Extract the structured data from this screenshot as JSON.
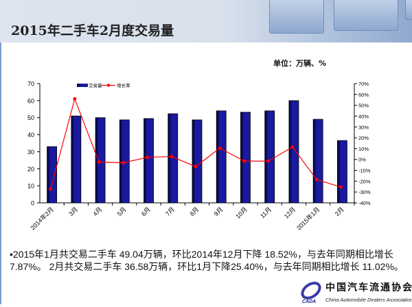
{
  "header": {
    "title": "2015年二手车2月度交易量"
  },
  "unit_label": "单位：万辆、%",
  "chart_data": {
    "type": "bar+line",
    "categories": [
      "2014年2月",
      "3月",
      "4月",
      "5月",
      "6月",
      "7月",
      "8月",
      "9月",
      "10月",
      "11月",
      "12月",
      "2015年1月",
      "2月"
    ],
    "series": [
      {
        "name": "交易量",
        "type": "bar",
        "axis": "left",
        "color": "#1a1a9c",
        "values": [
          33,
          51,
          50,
          48.7,
          49.5,
          52.3,
          48.7,
          54,
          53.2,
          54,
          60,
          49.04,
          36.58
        ]
      },
      {
        "name": "增长率",
        "type": "line",
        "axis": "right",
        "color": "#ff0000",
        "values": [
          -27.4,
          55.9,
          -2.3,
          -3.1,
          2,
          2.7,
          -6.5,
          10.5,
          -1.5,
          -1.5,
          11.5,
          -18.52,
          -25.4
        ]
      }
    ],
    "left_axis": {
      "ylim": [
        0,
        70
      ],
      "ticks": [
        "0",
        "10",
        "20",
        "30",
        "40",
        "50",
        "60",
        "70"
      ]
    },
    "right_axis": {
      "ylim": [
        -40,
        70
      ],
      "ticks": [
        "-40%",
        "-30%",
        "-20%",
        "-10%",
        "0%",
        "10%",
        "20%",
        "30%",
        "40%",
        "50%",
        "60%",
        "70%"
      ]
    },
    "legend": "top-left",
    "grid": false
  },
  "body_text": "•2015年1月共交易二手车 49.04万辆，环比2014年12月下降 18.52%，与去年同期相比增长7.87%。 2月共交易二手车 36.58万辆，环比1月下降25.40%，与去年同期相比增长 11.02%。",
  "logo": {
    "cn": "中国汽车流通协会",
    "en": "China Automobile Dealers Association",
    "abbr": "CADA"
  }
}
